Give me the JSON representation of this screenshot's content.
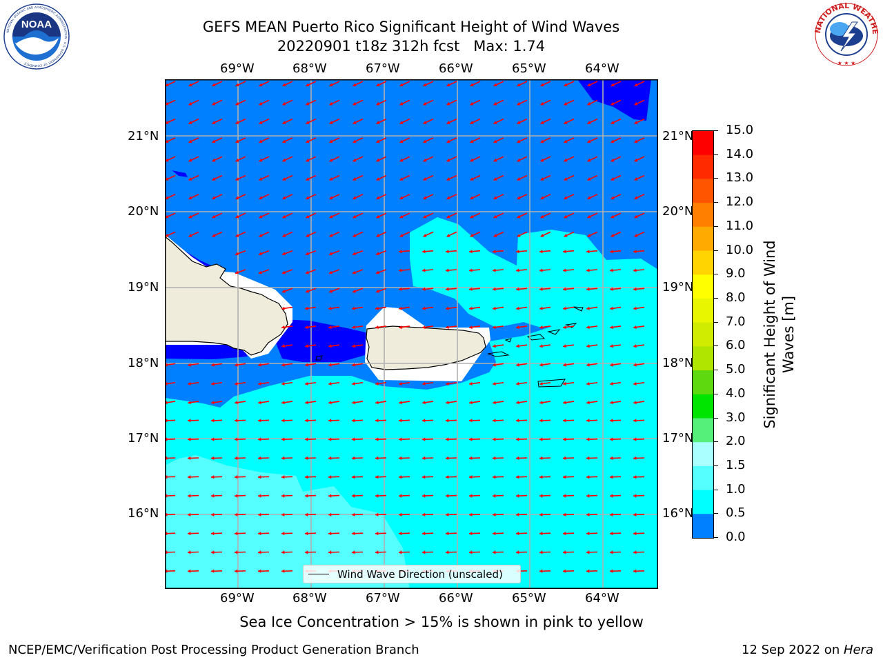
{
  "title": {
    "line1": "GEFS MEAN Puerto Rico Significant Height of Wind Waves",
    "line2": "20220901 t18z 312h fcst   Max: 1.74"
  },
  "logos": {
    "left": "NOAA",
    "left_ring_text": "NATIONAL OCEANIC AND ATMOSPHERIC ADMINISTRATION · U.S. DEPARTMENT OF COMMERCE",
    "right_ring_text": "NATIONAL WEATHER SERVICE"
  },
  "map": {
    "lon_labels": [
      "69°W",
      "68°W",
      "67°W",
      "66°W",
      "65°W",
      "64°W"
    ],
    "lat_labels": [
      "21°N",
      "20°N",
      "19°N",
      "18°N",
      "17°N",
      "16°N"
    ],
    "legend_label": "Wind Wave Direction (unscaled)",
    "arrow_color": "#ff0000",
    "land_color": "#efecdc"
  },
  "colorbar": {
    "label": "Significant Height of Wind Waves [m]",
    "label_line1": "Significant Height of Wind",
    "label_line2": "Waves [m]",
    "ticks": [
      "15.0",
      "14.0",
      "13.0",
      "12.0",
      "11.0",
      "10.0",
      "9.0",
      "8.0",
      "7.0",
      "6.0",
      "5.0",
      "4.0",
      "3.0",
      "2.0",
      "1.5",
      "1.0",
      "0.5",
      "0.0"
    ],
    "colors": [
      "#ff0000",
      "#ff2a00",
      "#ff5500",
      "#ff8000",
      "#ffaa00",
      "#ffd400",
      "#ffff00",
      "#e8f600",
      "#d0ec00",
      "#b0e500",
      "#5ed80f",
      "#00e500",
      "#55f07a",
      "#aaffff",
      "#55ffff",
      "#00ffff",
      "#0080ff",
      "#0000ff"
    ]
  },
  "caption": "Sea Ice Concentration > 15% is shown in pink to yellow",
  "footer": {
    "left": "NCEP/EMC/Verification Post Processing Product Generation Branch",
    "right_date": "12 Sep 2022 on ",
    "right_machine": "Hera"
  }
}
